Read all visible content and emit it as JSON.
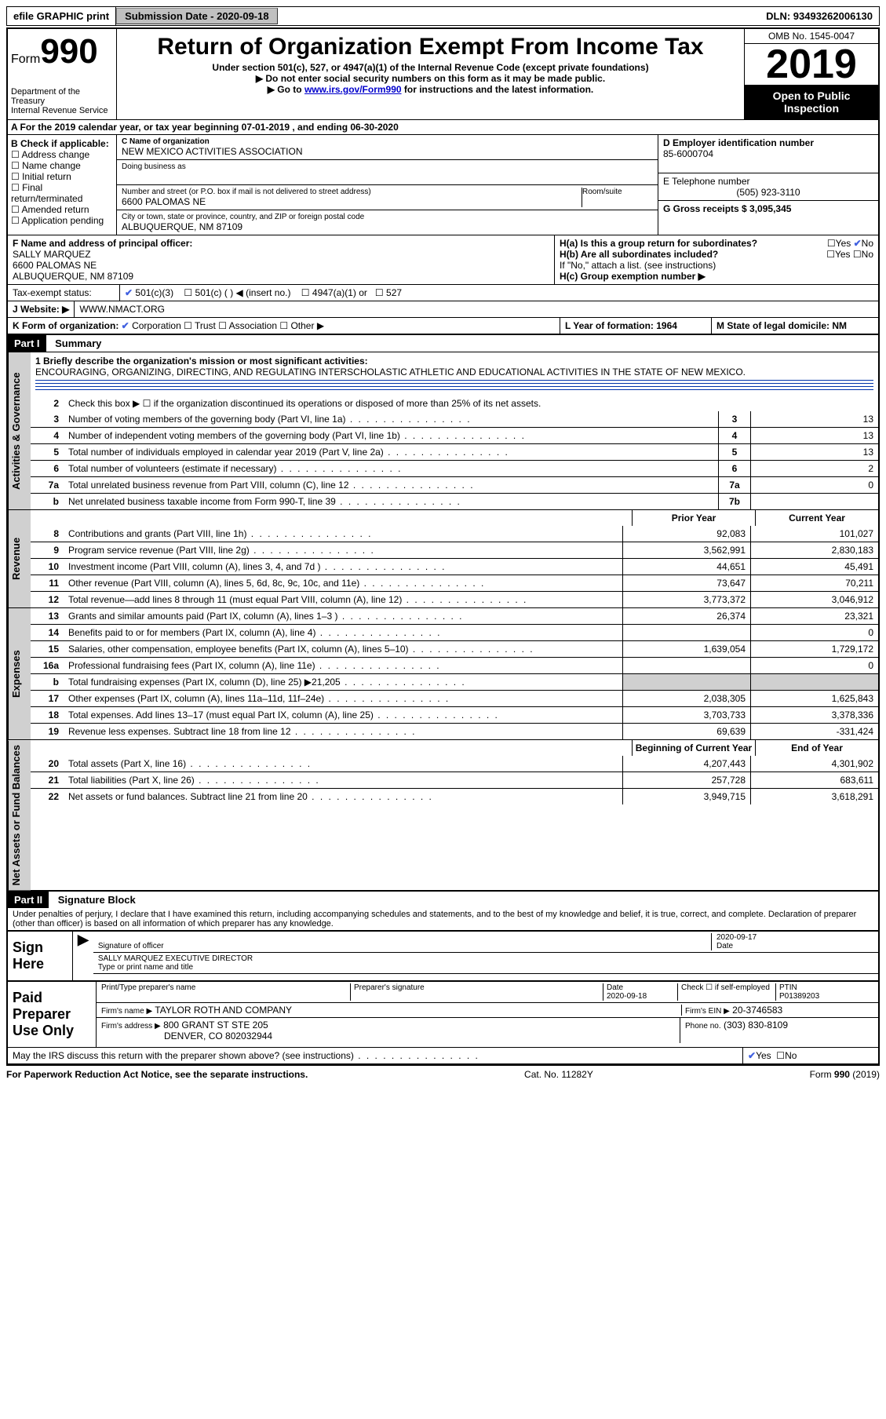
{
  "topbar": {
    "efile_label": "efile GRAPHIC print",
    "subdate_label": "Submission Date - 2020-09-18",
    "dln_label": "DLN: 93493262006130"
  },
  "header": {
    "form_word": "Form",
    "form_num": "990",
    "dept": "Department of the Treasury\nInternal Revenue Service",
    "title": "Return of Organization Exempt From Income Tax",
    "subtitle": "Under section 501(c), 527, or 4947(a)(1) of the Internal Revenue Code (except private foundations)",
    "note1": "▶ Do not enter social security numbers on this form as it may be made public.",
    "note2_pre": "▶ Go to ",
    "note2_link": "www.irs.gov/Form990",
    "note2_post": " for instructions and the latest information.",
    "omb": "OMB No. 1545-0047",
    "year": "2019",
    "open_pub": "Open to Public Inspection"
  },
  "rowA": "A   For the 2019 calendar year, or tax year beginning 07-01-2019    , and ending 06-30-2020",
  "sectionB": {
    "label": "B Check if applicable:",
    "opts": [
      "Address change",
      "Name change",
      "Initial return",
      "Final return/terminated",
      "Amended return",
      "Application pending"
    ],
    "c_name_lbl": "C Name of organization",
    "c_name": "NEW MEXICO ACTIVITIES ASSOCIATION",
    "dba_lbl": "Doing business as",
    "addr_lbl": "Number and street (or P.O. box if mail is not delivered to street address)",
    "room_lbl": "Room/suite",
    "addr": "6600 PALOMAS NE",
    "city_lbl": "City or town, state or province, country, and ZIP or foreign postal code",
    "city": "ALBUQUERQUE, NM  87109",
    "d_lbl": "D Employer identification number",
    "d_val": "85-6000704",
    "e_lbl": "E Telephone number",
    "e_val": "(505) 923-3110",
    "g_lbl": "G Gross receipts $ 3,095,345"
  },
  "sectionF": {
    "f_lbl": "F  Name and address of principal officer:",
    "f_val": "SALLY MARQUEZ\n6600 PALOMAS NE\nALBUQUERQUE, NM  87109",
    "ha_lbl": "H(a)  Is this a group return for subordinates?",
    "hb_lbl": "H(b)  Are all subordinates included?",
    "h_note": "If \"No,\" attach a list. (see instructions)",
    "hc_lbl": "H(c)  Group exemption number ▶",
    "yes": "Yes",
    "no": "No"
  },
  "taxExempt": {
    "lbl": "Tax-exempt status:",
    "o1": "501(c)(3)",
    "o2": "501(c) (   ) ◀ (insert no.)",
    "o3": "4947(a)(1) or",
    "o4": "527"
  },
  "rowJ": {
    "lbl": "J    Website: ▶",
    "val": "WWW.NMACT.ORG"
  },
  "rowK": {
    "lbl": "K Form of organization:",
    "opts": [
      "Corporation",
      "Trust",
      "Association",
      "Other ▶"
    ],
    "l_lbl": "L Year of formation: 1964",
    "m_lbl": "M State of legal domicile: NM"
  },
  "partI": {
    "tag": "Part I",
    "title": "Summary",
    "tab_gov": "Activities & Governance",
    "tab_rev": "Revenue",
    "tab_exp": "Expenses",
    "tab_net": "Net Assets or Fund Balances",
    "l1_lbl": "1   Briefly describe the organization's mission or most significant activities:",
    "l1_val": "ENCOURAGING, ORGANIZING, DIRECTING, AND REGULATING INTERSCHOLASTIC ATHLETIC AND EDUCATIONAL ACTIVITIES IN THE STATE OF NEW MEXICO.",
    "l2": "Check this box ▶ ☐  if the organization discontinued its operations or disposed of more than 25% of its net assets.",
    "govlines": [
      {
        "n": "3",
        "t": "Number of voting members of the governing body (Part VI, line 1a)",
        "v": "13"
      },
      {
        "n": "4",
        "t": "Number of independent voting members of the governing body (Part VI, line 1b)",
        "v": "13"
      },
      {
        "n": "5",
        "t": "Total number of individuals employed in calendar year 2019 (Part V, line 2a)",
        "v": "13"
      },
      {
        "n": "6",
        "t": "Total number of volunteers (estimate if necessary)",
        "v": "2"
      },
      {
        "n": "7a",
        "t": "Total unrelated business revenue from Part VIII, column (C), line 12",
        "v": "0"
      },
      {
        "n": "b",
        "t": "Net unrelated business taxable income from Form 990-T, line 39",
        "nn": "7b",
        "v": ""
      }
    ],
    "prior_lbl": "Prior Year",
    "curr_lbl": "Current Year",
    "revlines": [
      {
        "n": "8",
        "t": "Contributions and grants (Part VIII, line 1h)",
        "p": "92,083",
        "c": "101,027"
      },
      {
        "n": "9",
        "t": "Program service revenue (Part VIII, line 2g)",
        "p": "3,562,991",
        "c": "2,830,183"
      },
      {
        "n": "10",
        "t": "Investment income (Part VIII, column (A), lines 3, 4, and 7d )",
        "p": "44,651",
        "c": "45,491"
      },
      {
        "n": "11",
        "t": "Other revenue (Part VIII, column (A), lines 5, 6d, 8c, 9c, 10c, and 11e)",
        "p": "73,647",
        "c": "70,211"
      },
      {
        "n": "12",
        "t": "Total revenue—add lines 8 through 11 (must equal Part VIII, column (A), line 12)",
        "p": "3,773,372",
        "c": "3,046,912"
      }
    ],
    "explines": [
      {
        "n": "13",
        "t": "Grants and similar amounts paid (Part IX, column (A), lines 1–3 )",
        "p": "26,374",
        "c": "23,321"
      },
      {
        "n": "14",
        "t": "Benefits paid to or for members (Part IX, column (A), line 4)",
        "p": "",
        "c": "0"
      },
      {
        "n": "15",
        "t": "Salaries, other compensation, employee benefits (Part IX, column (A), lines 5–10)",
        "p": "1,639,054",
        "c": "1,729,172"
      },
      {
        "n": "16a",
        "t": "Professional fundraising fees (Part IX, column (A), line 11e)",
        "p": "",
        "c": "0"
      },
      {
        "n": "b",
        "t": "Total fundraising expenses (Part IX, column (D), line 25) ▶21,205",
        "p": "SHADE",
        "c": "SHADE"
      },
      {
        "n": "17",
        "t": "Other expenses (Part IX, column (A), lines 11a–11d, 11f–24e)",
        "p": "2,038,305",
        "c": "1,625,843"
      },
      {
        "n": "18",
        "t": "Total expenses. Add lines 13–17 (must equal Part IX, column (A), line 25)",
        "p": "3,703,733",
        "c": "3,378,336"
      },
      {
        "n": "19",
        "t": "Revenue less expenses. Subtract line 18 from line 12",
        "p": "69,639",
        "c": "-331,424"
      }
    ],
    "boy_lbl": "Beginning of Current Year",
    "eoy_lbl": "End of Year",
    "netlines": [
      {
        "n": "20",
        "t": "Total assets (Part X, line 16)",
        "p": "4,207,443",
        "c": "4,301,902"
      },
      {
        "n": "21",
        "t": "Total liabilities (Part X, line 26)",
        "p": "257,728",
        "c": "683,611"
      },
      {
        "n": "22",
        "t": "Net assets or fund balances. Subtract line 21 from line 20",
        "p": "3,949,715",
        "c": "3,618,291"
      }
    ]
  },
  "partII": {
    "tag": "Part II",
    "title": "Signature Block",
    "decl": "Under penalties of perjury, I declare that I have examined this return, including accompanying schedules and statements, and to the best of my knowledge and belief, it is true, correct, and complete. Declaration of preparer (other than officer) is based on all information of which preparer has any knowledge.",
    "sign_here": "Sign Here",
    "sig_officer_lbl": "Signature of officer",
    "sig_date": "2020-09-17",
    "date_lbl": "Date",
    "officer_name": "SALLY MARQUEZ  EXECUTIVE DIRECTOR",
    "officer_lbl": "Type or print name and title",
    "paid": "Paid Preparer Use Only",
    "prep_name_lbl": "Print/Type preparer's name",
    "prep_sig_lbl": "Preparer's signature",
    "prep_date": "2020-09-18",
    "check_lbl": "Check ☐ if self-employed",
    "ptin_lbl": "PTIN",
    "ptin": "P01389203",
    "firm_lbl": "Firm's name    ▶",
    "firm": "TAYLOR ROTH AND COMPANY",
    "firm_ein_lbl": "Firm's EIN ▶",
    "firm_ein": "20-3746583",
    "firm_addr_lbl": "Firm's address ▶",
    "firm_addr1": "800 GRANT ST STE 205",
    "firm_addr2": "DENVER, CO  802032944",
    "phone_lbl": "Phone no.",
    "phone": "(303) 830-8109",
    "discuss": "May the IRS discuss this return with the preparer shown above? (see instructions)"
  },
  "footer": {
    "left": "For Paperwork Reduction Act Notice, see the separate instructions.",
    "mid": "Cat. No. 11282Y",
    "right": "Form 990 (2019)"
  },
  "colors": {
    "link": "#0000cc",
    "shade": "#d0d0d0",
    "black": "#000000"
  }
}
